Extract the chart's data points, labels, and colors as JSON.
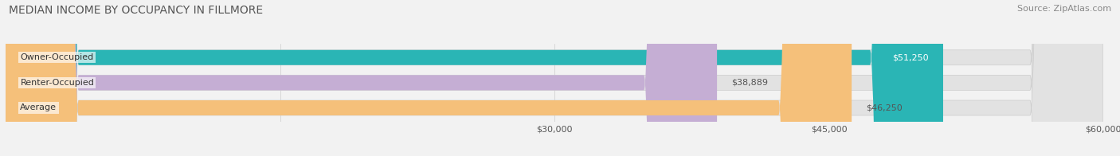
{
  "title": "MEDIAN INCOME BY OCCUPANCY IN FILLMORE",
  "source": "Source: ZipAtlas.com",
  "categories": [
    "Owner-Occupied",
    "Renter-Occupied",
    "Average"
  ],
  "values": [
    51250,
    38889,
    46250
  ],
  "labels": [
    "$51,250",
    "$38,889",
    "$46,250"
  ],
  "bar_colors": [
    "#2ab5b5",
    "#c5aed4",
    "#f5c07a"
  ],
  "label_inside": [
    true,
    false,
    false
  ],
  "xlim": [
    0,
    60000
  ],
  "background_color": "#f2f2f2",
  "bar_background_color": "#e2e2e2",
  "title_fontsize": 10,
  "source_fontsize": 8,
  "label_fontsize": 8,
  "tick_fontsize": 8
}
